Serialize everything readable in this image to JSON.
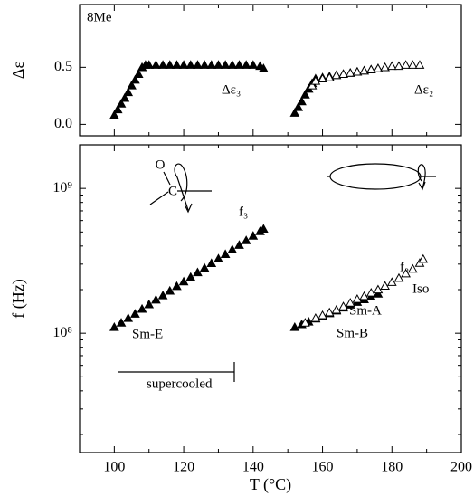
{
  "chart_data": [
    {
      "type": "scatter",
      "ylabel": "Δε",
      "xlim": [
        90,
        200
      ],
      "xticks": [
        100,
        120,
        140,
        160,
        180,
        200
      ],
      "xminorticks": [
        90,
        110,
        130,
        150,
        170,
        190
      ],
      "show_xtick_labels": false,
      "ylim": [
        -0.1,
        1.05
      ],
      "yticks": [
        {
          "value": 0,
          "label": "0.0"
        },
        0.5
      ],
      "annotations": [
        "8Me",
        "Δε₃",
        "Δε₂"
      ],
      "series": [
        {
          "color": "#000000",
          "marker": "filled",
          "x": [
            100,
            101,
            102,
            103,
            104,
            105,
            106,
            107,
            108,
            109,
            110,
            112,
            114,
            116,
            118,
            120,
            122,
            124,
            126,
            128,
            130,
            132,
            134,
            136,
            138,
            140,
            142,
            143
          ],
          "values": [
            0.08,
            0.13,
            0.18,
            0.23,
            0.28,
            0.34,
            0.39,
            0.44,
            0.5,
            0.52,
            0.52,
            0.52,
            0.52,
            0.52,
            0.52,
            0.52,
            0.52,
            0.52,
            0.52,
            0.52,
            0.52,
            0.52,
            0.52,
            0.52,
            0.52,
            0.52,
            0.51,
            0.49
          ]
        },
        {
          "color": "#000000",
          "marker": "filled",
          "x": [
            152,
            153,
            154,
            155,
            156,
            157,
            158,
            160,
            162,
            164,
            166,
            168,
            170,
            172,
            174,
            176
          ],
          "values": [
            0.1,
            0.15,
            0.2,
            0.26,
            0.31,
            0.36,
            0.4,
            0.41,
            0.42,
            0.43,
            0.44,
            0.45,
            0.46,
            0.47,
            0.48,
            0.49
          ]
        },
        {
          "color": "#000000",
          "marker": "open",
          "x": [
            157,
            158,
            160,
            162,
            164,
            166,
            168,
            170,
            172,
            174,
            176,
            178,
            180,
            182,
            184,
            186,
            188
          ],
          "values": [
            0.34,
            0.38,
            0.4,
            0.41,
            0.43,
            0.44,
            0.45,
            0.46,
            0.47,
            0.48,
            0.49,
            0.5,
            0.51,
            0.51,
            0.52,
            0.52,
            0.52
          ]
        }
      ]
    },
    {
      "type": "scatter",
      "xlabel": "T (°C)",
      "ylabel": "f (Hz)",
      "xlim": [
        90,
        200
      ],
      "xticks": [
        100,
        120,
        140,
        160,
        180,
        200
      ],
      "xminorticks": [
        90,
        110,
        130,
        150,
        170,
        190
      ],
      "show_xtick_labels": true,
      "ylim": [
        15000000,
        2000000000
      ],
      "ylog": true,
      "yticks": [
        {
          "value": 100000000,
          "label": "10⁸"
        },
        {
          "value": 1000000000,
          "label": "10⁹"
        }
      ],
      "yminorticks": [
        20000000,
        30000000,
        40000000,
        50000000,
        60000000,
        70000000,
        80000000,
        90000000,
        200000000,
        300000000,
        400000000,
        500000000,
        600000000,
        700000000,
        800000000,
        900000000
      ],
      "annotations": [
        "f₃",
        "f₂",
        "Sm-E",
        "Sm-A",
        "Sm-B",
        "Iso",
        "supercooled",
        "O",
        "C"
      ],
      "series": [
        {
          "color": "#000000",
          "marker": "filled",
          "x": [
            100,
            102,
            104,
            106,
            108,
            110,
            112,
            114,
            116,
            118,
            120,
            122,
            124,
            126,
            128,
            130,
            132,
            134,
            136,
            138,
            140,
            142,
            143
          ],
          "values": [
            110000000,
            118000000,
            127000000,
            136000000,
            147000000,
            158000000,
            170000000,
            182000000,
            196000000,
            211000000,
            227000000,
            244000000,
            263000000,
            282000000,
            304000000,
            327000000,
            351000000,
            378000000,
            406000000,
            437000000,
            470000000,
            505000000,
            525000000
          ]
        },
        {
          "color": "#000000",
          "marker": "filled",
          "x": [
            152,
            154,
            156,
            158,
            160,
            162,
            164,
            166,
            168,
            170,
            172,
            174,
            176
          ],
          "values": [
            110000000,
            115000000,
            120000000,
            126000000,
            131000000,
            137000000,
            143000000,
            150000000,
            157000000,
            164000000,
            171000000,
            179000000,
            187000000
          ]
        },
        {
          "color": "#000000",
          "marker": "open",
          "x": [
            155,
            158,
            160,
            162,
            164,
            166,
            168,
            170,
            172,
            174,
            176,
            178,
            180,
            182,
            184,
            186,
            188,
            189
          ],
          "values": [
            118000000,
            127000000,
            133000000,
            139000000,
            145000000,
            153000000,
            162000000,
            172000000,
            180000000,
            190000000,
            200000000,
            212000000,
            225000000,
            240000000,
            258000000,
            278000000,
            305000000,
            325000000
          ]
        }
      ]
    }
  ]
}
